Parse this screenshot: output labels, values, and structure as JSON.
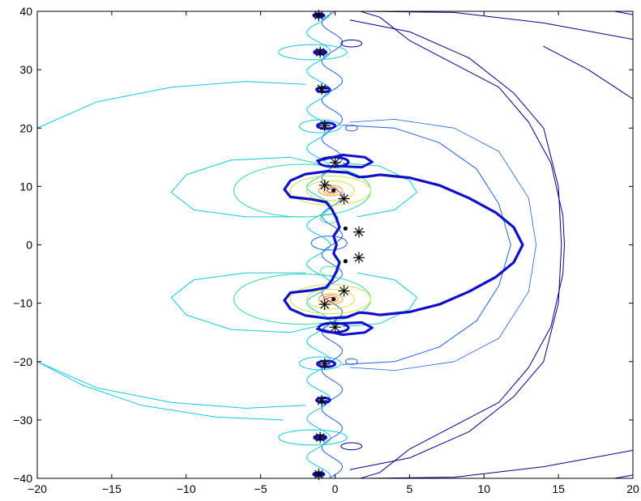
{
  "chart_data": {
    "type": "contour",
    "title": "",
    "xlabel": "",
    "ylabel": "",
    "xlim": [
      -20,
      20
    ],
    "ylim": [
      -40,
      40
    ],
    "x_ticks": [
      -20,
      -15,
      -10,
      -5,
      0,
      5,
      10,
      15,
      20
    ],
    "y_ticks": [
      -40,
      -30,
      -20,
      -10,
      0,
      10,
      20,
      30,
      40
    ],
    "x_tick_labels": [
      "−20",
      "−15",
      "−10",
      "−5",
      "0",
      "5",
      "10",
      "15",
      "20"
    ],
    "y_tick_labels": [
      "−40",
      "−30",
      "−20",
      "−10",
      "0",
      "10",
      "20",
      "30",
      "40"
    ],
    "grid": false,
    "colors": {
      "thick_contour": "#1010c8",
      "navy": "#00008b",
      "blue": "#2060e0",
      "cyan": "#10c8e0",
      "teal": "#30d8a0",
      "yellow": "#d8e040",
      "orange": "#ff9820",
      "red": "#e03020",
      "marker": "#000000"
    },
    "star_markers": [
      {
        "x": -1.1,
        "y": 39.3
      },
      {
        "x": -1.0,
        "y": 33.0
      },
      {
        "x": -0.9,
        "y": 26.7
      },
      {
        "x": -0.7,
        "y": 20.4
      },
      {
        "x": 0.0,
        "y": 14.1
      },
      {
        "x": -0.7,
        "y": 10.2
      },
      {
        "x": 0.6,
        "y": 7.9
      },
      {
        "x": 1.6,
        "y": 2.2
      },
      {
        "x": 1.6,
        "y": -2.2
      },
      {
        "x": 0.6,
        "y": -7.9
      },
      {
        "x": -0.7,
        "y": -10.2
      },
      {
        "x": 0.0,
        "y": -14.1
      },
      {
        "x": -0.7,
        "y": -20.4
      },
      {
        "x": -0.9,
        "y": -26.7
      },
      {
        "x": -1.0,
        "y": -33.0
      },
      {
        "x": -1.1,
        "y": -39.3
      }
    ],
    "dot_markers": [
      {
        "x": 0.7,
        "y": 2.8
      },
      {
        "x": 0.7,
        "y": -2.8
      },
      {
        "x": -0.1,
        "y": 9.3
      },
      {
        "x": -0.1,
        "y": -9.3
      }
    ]
  }
}
